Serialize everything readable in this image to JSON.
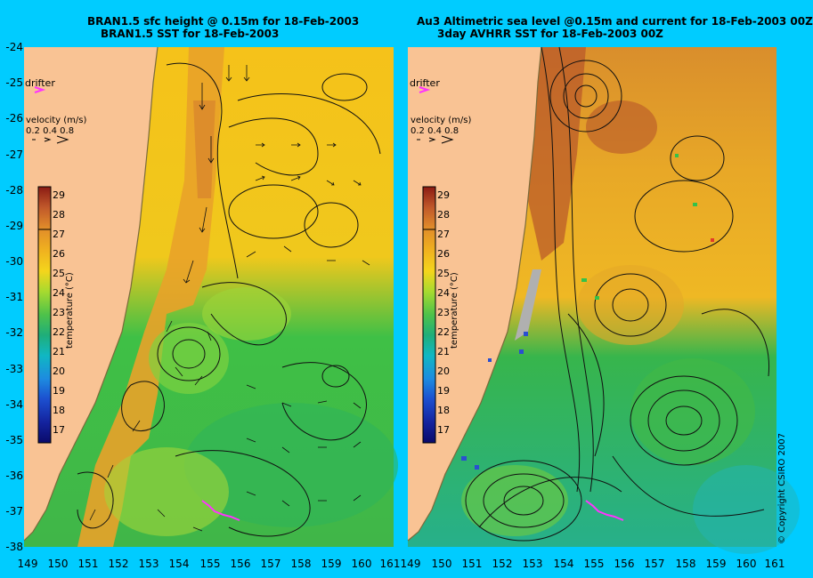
{
  "left_panel": {
    "title_line1": "BRAN1.5 sfc height @ 0.15m for 18-Feb-2003",
    "title_line2": "BRAN1.5 SST for 18-Feb-2003"
  },
  "right_panel": {
    "title_line1": "Au3 Altimetric sea level  @0.15m and current for 18-Feb-2003 00Z",
    "title_line2": "3day AVHRR SST for 18-Feb-2003 00Z"
  },
  "y_ticks": [
    "-24",
    "-25",
    "-26",
    "-27",
    "-28",
    "-29",
    "-30",
    "-31",
    "-32",
    "-33",
    "-34",
    "-35",
    "-36",
    "-37",
    "-38"
  ],
  "x_ticks": [
    "149",
    "150",
    "151",
    "152",
    "153",
    "154",
    "155",
    "156",
    "157",
    "158",
    "159",
    "160",
    "161"
  ],
  "legend": {
    "drifter_label": "drifter",
    "velocity_title": "velocity (m/s)",
    "velocity_values": "0.2 0.4 0.8",
    "temperature_title": "temperature (°C)",
    "temperature_ticks": [
      "29",
      "28",
      "27",
      "26",
      "25",
      "24",
      "23",
      "22",
      "21",
      "20",
      "19",
      "18",
      "17"
    ]
  },
  "copyright": "© Copyright CSIRO 2007",
  "colors": {
    "background": "#00ccff",
    "land": "#f9c394",
    "drifter": "#ff33ff"
  }
}
